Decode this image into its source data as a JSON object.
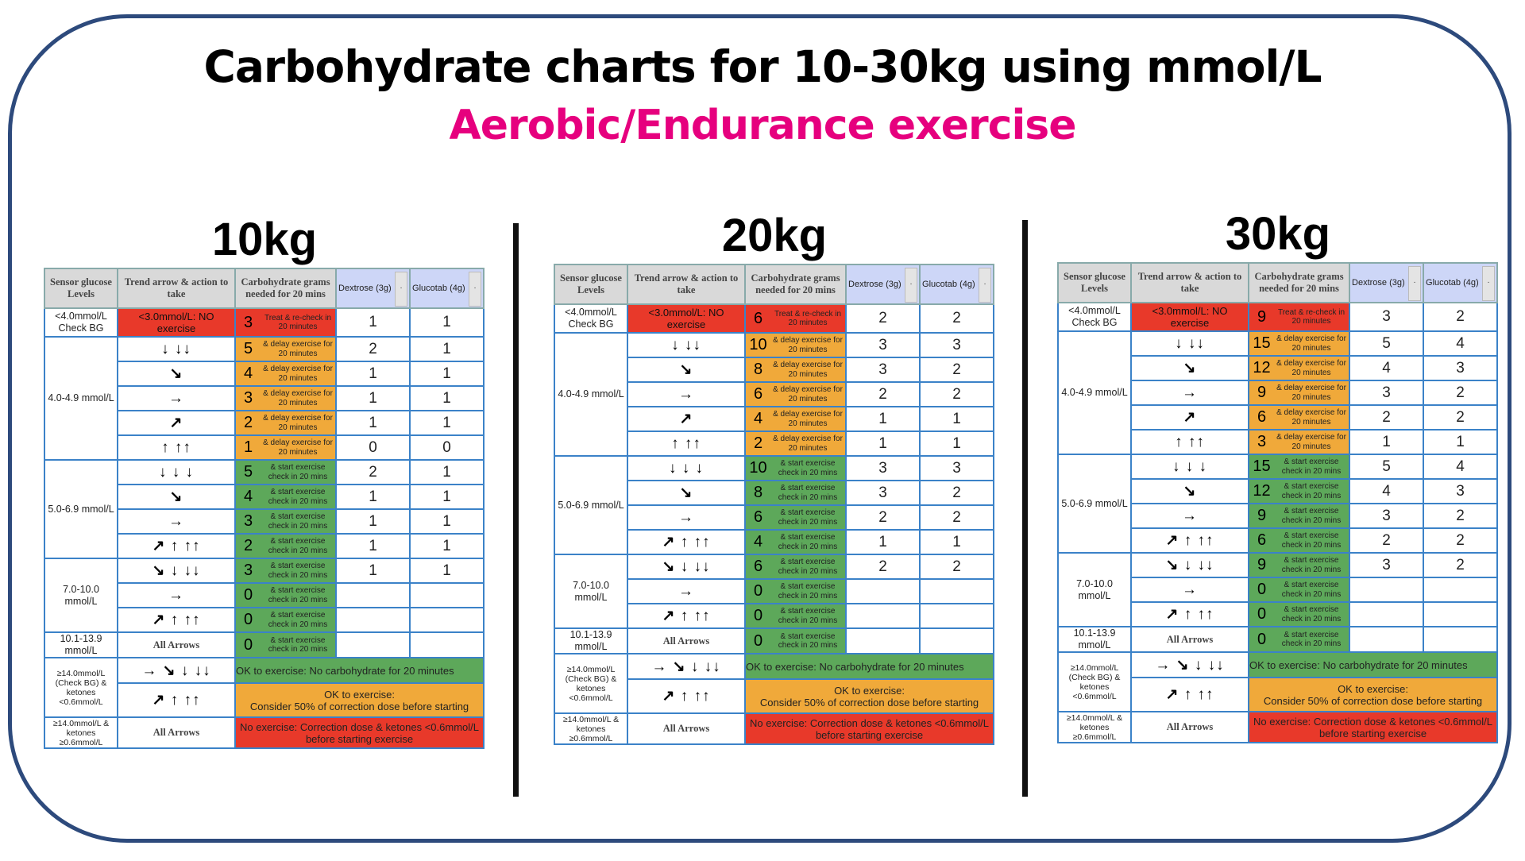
{
  "title": "Carbohydrate charts for 10-30kg using mmol/L",
  "subtitle": "Aerobic/Endurance exercise",
  "colors": {
    "red": "#e8392a",
    "orange": "#f0a93a",
    "green": "#5da85a",
    "subtitle": "#e6007e",
    "header_gray": "#d9d9d9",
    "header_blue": "#cdd6f7",
    "border": "#3b82c8"
  },
  "header": {
    "sensor": "Sensor glucose Levels",
    "trend": "Trend arrow & action to take",
    "carbs": "Carbohydrate grams needed for 20 mins",
    "dextrose": "Dextrose (3g)",
    "glucotab": "Glucotab (4g)",
    "dropdown_icon": "·"
  },
  "rows": [
    {
      "level": "<4.0mmol/L Check BG",
      "trend": "<3.0mmol/L: NO exercise",
      "action": "Treat & re-check in 20 minutes",
      "color": "red"
    },
    {
      "level": "4.0-4.9 mmol/L",
      "trend": "↓  ↓↓",
      "action": "& delay exercise for 20 minutes",
      "color": "orange"
    },
    {
      "level": null,
      "trend": "↘",
      "action": "& delay exercise for 20 minutes",
      "color": "orange"
    },
    {
      "level": null,
      "trend": "→",
      "action": "& delay exercise for 20 minutes",
      "color": "orange"
    },
    {
      "level": null,
      "trend": "↗",
      "action": "& delay exercise for 20 minutes",
      "color": "orange"
    },
    {
      "level": null,
      "trend": "↑  ↑↑",
      "action": "& delay exercise for 20 minutes",
      "color": "orange"
    },
    {
      "level": "5.0-6.9 mmol/L",
      "trend": "↓  ↓ ↓",
      "action": "& start exercise check in 20 mins",
      "color": "green"
    },
    {
      "level": null,
      "trend": "↘",
      "action": "& start exercise check in 20 mins",
      "color": "green"
    },
    {
      "level": null,
      "trend": "→",
      "action": "& start exercise check in 20 mins",
      "color": "green"
    },
    {
      "level": null,
      "trend": "↗ ↑  ↑↑",
      "action": "& start exercise check in 20 mins",
      "color": "green"
    },
    {
      "level": "7.0-10.0 mmol/L",
      "trend": "↘ ↓  ↓↓",
      "action": "& start exercise check in 20 mins",
      "color": "green"
    },
    {
      "level": null,
      "trend": "→",
      "action": "& start exercise check in 20 mins",
      "color": "green"
    },
    {
      "level": null,
      "trend": "↗ ↑  ↑↑",
      "action": "& start exercise check in 20 mins",
      "color": "green"
    },
    {
      "level": "10.1-13.9 mmol/L",
      "trend": "All Arrows",
      "action": "& start exercise check in 20 mins",
      "color": "green"
    }
  ],
  "high_rows": [
    {
      "level": "≥14.0mmol/L (Check BG) & ketones <0.6mmol/L",
      "trend": "→ ↘ ↓  ↓↓",
      "message": "OK to exercise: No carbohydrate for 20 minutes",
      "color": "green"
    },
    {
      "level": null,
      "trend": "↗ ↑  ↑↑",
      "message": "OK to exercise:\nConsider 50% of correction dose before starting",
      "color": "orange"
    },
    {
      "level": "≥14.0mmol/L & ketones ≥0.6mmol/L",
      "trend": "All Arrows",
      "message": "No exercise: Correction dose & ketones <0.6mmol/L before starting exercise",
      "color": "red"
    }
  ],
  "charts": [
    {
      "weight": "10kg",
      "carbs": [
        "3",
        "5",
        "4",
        "3",
        "2",
        "1",
        "5",
        "4",
        "3",
        "2",
        "3",
        "0",
        "0",
        "0"
      ],
      "dextrose": [
        "1",
        "2",
        "1",
        "1",
        "1",
        "0",
        "2",
        "1",
        "1",
        "1",
        "1",
        "",
        "",
        ""
      ],
      "glucotab": [
        "1",
        "1",
        "1",
        "1",
        "1",
        "0",
        "1",
        "1",
        "1",
        "1",
        "1",
        "",
        "",
        ""
      ]
    },
    {
      "weight": "20kg",
      "carbs": [
        "6",
        "10",
        "8",
        "6",
        "4",
        "2",
        "10",
        "8",
        "6",
        "4",
        "6",
        "0",
        "0",
        "0"
      ],
      "dextrose": [
        "2",
        "3",
        "3",
        "2",
        "1",
        "1",
        "3",
        "3",
        "2",
        "1",
        "2",
        "",
        "",
        ""
      ],
      "glucotab": [
        "2",
        "3",
        "2",
        "2",
        "1",
        "1",
        "3",
        "2",
        "2",
        "1",
        "2",
        "",
        "",
        ""
      ]
    },
    {
      "weight": "30kg",
      "carbs": [
        "9",
        "15",
        "12",
        "9",
        "6",
        "3",
        "15",
        "12",
        "9",
        "6",
        "9",
        "0",
        "0",
        "0"
      ],
      "dextrose": [
        "3",
        "5",
        "4",
        "3",
        "2",
        "1",
        "5",
        "4",
        "3",
        "2",
        "3",
        "",
        "",
        ""
      ],
      "glucotab": [
        "2",
        "4",
        "3",
        "2",
        "2",
        "1",
        "4",
        "3",
        "2",
        "2",
        "2",
        "",
        "",
        ""
      ]
    }
  ]
}
